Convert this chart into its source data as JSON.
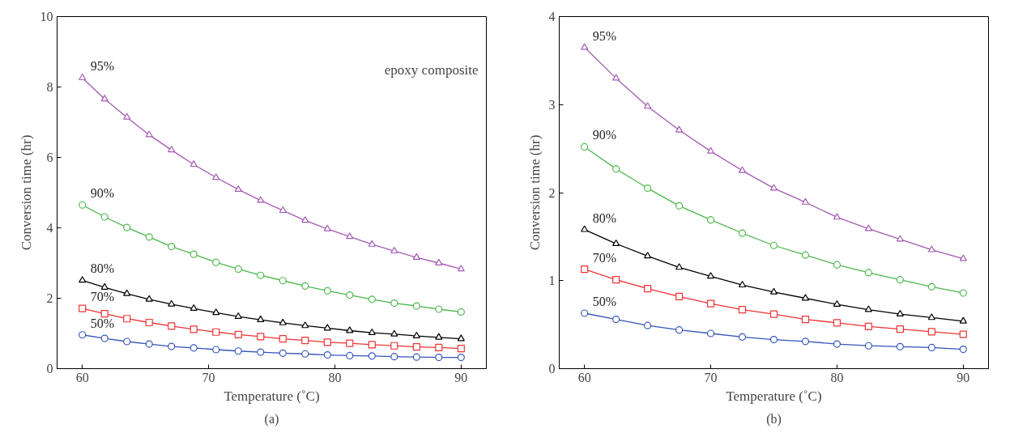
{
  "chart_data": [
    {
      "type": "line",
      "title": "(a)",
      "xlabel": "Temperature (˚C)",
      "ylabel": "Conversion time (hr)",
      "annotations": [
        "epoxy composite"
      ],
      "x": [
        60,
        61.765,
        63.529,
        65.294,
        67.059,
        68.824,
        70.588,
        72.353,
        74.118,
        75.882,
        77.647,
        79.412,
        81.176,
        82.941,
        84.706,
        86.471,
        88.235,
        90
      ],
      "xlim": [
        58,
        92
      ],
      "xticks": [
        60,
        70,
        80,
        90
      ],
      "ylim": [
        0,
        10
      ],
      "yticks": [
        0,
        2,
        4,
        6,
        8,
        10
      ],
      "grid": false,
      "series": [
        {
          "name": "95%",
          "color": "#a45ab4",
          "marker": "triangle",
          "values": [
            8.26,
            7.66,
            7.14,
            6.64,
            6.21,
            5.8,
            5.43,
            5.09,
            4.78,
            4.49,
            4.21,
            3.97,
            3.75,
            3.53,
            3.34,
            3.16,
            3.0,
            2.83
          ]
        },
        {
          "name": "90%",
          "color": "#4cb84c",
          "marker": "circle",
          "values": [
            4.65,
            4.31,
            4.01,
            3.74,
            3.47,
            3.25,
            3.02,
            2.83,
            2.65,
            2.5,
            2.35,
            2.21,
            2.09,
            1.97,
            1.86,
            1.78,
            1.69,
            1.61
          ]
        },
        {
          "name": "80%",
          "color": "#000000",
          "marker": "triangle",
          "values": [
            2.51,
            2.31,
            2.13,
            1.97,
            1.83,
            1.71,
            1.59,
            1.48,
            1.39,
            1.3,
            1.22,
            1.15,
            1.08,
            1.02,
            0.98,
            0.93,
            0.89,
            0.85
          ]
        },
        {
          "name": "70%",
          "color": "#ee3333",
          "marker": "square",
          "values": [
            1.71,
            1.56,
            1.42,
            1.31,
            1.21,
            1.12,
            1.04,
            0.97,
            0.91,
            0.85,
            0.8,
            0.75,
            0.72,
            0.68,
            0.65,
            0.62,
            0.6,
            0.57
          ]
        },
        {
          "name": "50%",
          "color": "#3355bb",
          "marker": "circle",
          "values": [
            0.96,
            0.86,
            0.77,
            0.7,
            0.63,
            0.59,
            0.54,
            0.5,
            0.47,
            0.44,
            0.42,
            0.39,
            0.37,
            0.36,
            0.34,
            0.33,
            0.32,
            0.32
          ]
        }
      ]
    },
    {
      "type": "line",
      "title": "(b)",
      "xlabel": "Temperature (˚C)",
      "ylabel": "Conversion time (hr)",
      "x": [
        60,
        62.5,
        65,
        67.5,
        70,
        72.5,
        75,
        77.5,
        80,
        82.5,
        85,
        87.5,
        90
      ],
      "xlim": [
        58,
        92
      ],
      "xticks": [
        60,
        70,
        80,
        90
      ],
      "ylim": [
        0,
        4
      ],
      "yticks": [
        0,
        1,
        2,
        3,
        4
      ],
      "grid": false,
      "series": [
        {
          "name": "95%",
          "color": "#a45ab4",
          "marker": "triangle",
          "values": [
            3.65,
            3.3,
            2.98,
            2.71,
            2.47,
            2.25,
            2.05,
            1.89,
            1.72,
            1.59,
            1.47,
            1.35,
            1.25
          ]
        },
        {
          "name": "90%",
          "color": "#4cb84c",
          "marker": "circle",
          "values": [
            2.52,
            2.27,
            2.05,
            1.85,
            1.69,
            1.54,
            1.4,
            1.29,
            1.18,
            1.09,
            1.01,
            0.93,
            0.86
          ]
        },
        {
          "name": "80%",
          "color": "#000000",
          "marker": "triangle",
          "values": [
            1.58,
            1.42,
            1.28,
            1.15,
            1.05,
            0.95,
            0.87,
            0.8,
            0.73,
            0.67,
            0.62,
            0.58,
            0.54
          ]
        },
        {
          "name": "70%",
          "color": "#ee3333",
          "marker": "square",
          "values": [
            1.13,
            1.01,
            0.91,
            0.82,
            0.74,
            0.67,
            0.62,
            0.56,
            0.52,
            0.48,
            0.45,
            0.42,
            0.39
          ]
        },
        {
          "name": "50%",
          "color": "#3355bb",
          "marker": "circle",
          "values": [
            0.63,
            0.56,
            0.49,
            0.44,
            0.4,
            0.36,
            0.33,
            0.31,
            0.28,
            0.26,
            0.25,
            0.24,
            0.22
          ]
        }
      ]
    }
  ]
}
